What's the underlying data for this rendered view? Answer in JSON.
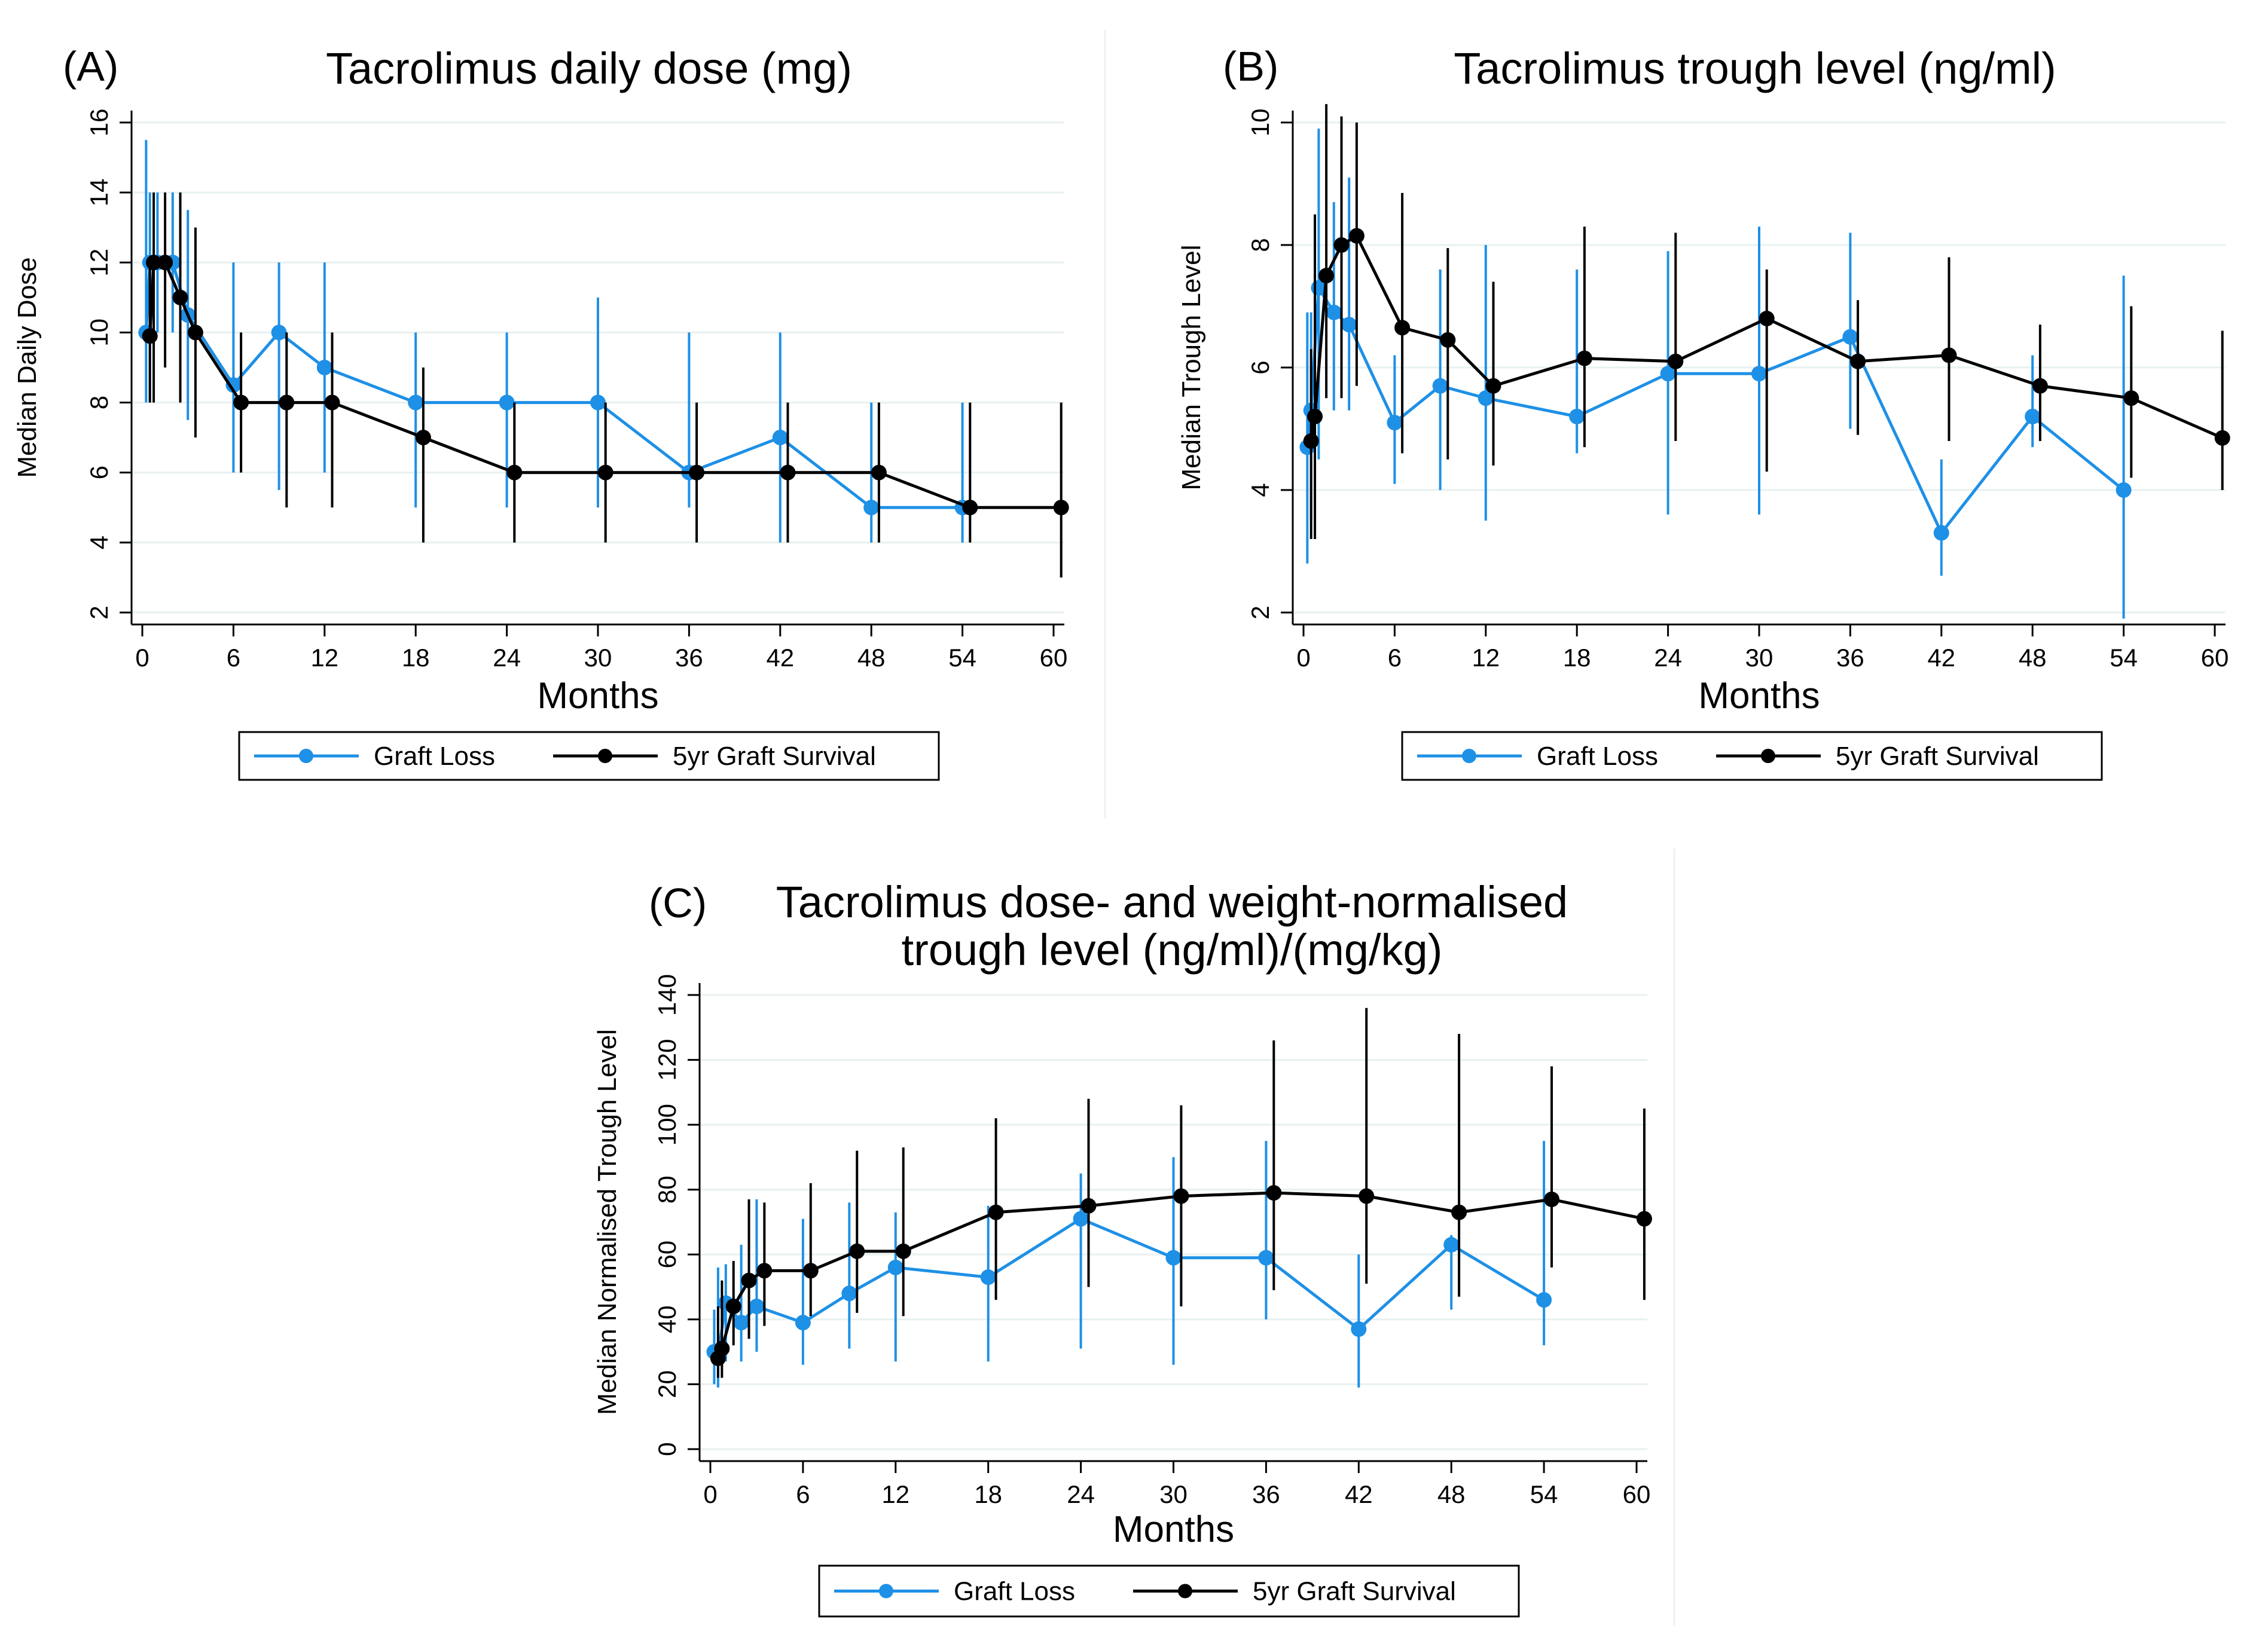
{
  "colors": {
    "graft_loss": "#1e90e6",
    "survival": "#000000"
  },
  "legend": {
    "graft_loss": "Graft Loss",
    "survival": "5yr Graft Survival"
  },
  "chart_data": [
    {
      "type": "line",
      "panel_label": "(A)",
      "title": [
        "Tacrolimus daily dose (mg)"
      ],
      "xlabel": "Months",
      "ylabel": "Median Daily Dose",
      "xlim": [
        0,
        60
      ],
      "ylim": [
        2,
        16
      ],
      "xticks": [
        0,
        6,
        12,
        18,
        24,
        30,
        36,
        42,
        48,
        54,
        60
      ],
      "yticks": [
        2,
        4,
        6,
        8,
        10,
        12,
        14,
        16
      ],
      "grid": true,
      "legend_position": "bottom",
      "series": [
        {
          "name": "Graft Loss",
          "x": [
            0.25,
            0.5,
            1,
            2,
            3,
            6,
            9,
            12,
            18,
            24,
            30,
            36,
            42,
            48,
            54
          ],
          "y": [
            10,
            12,
            12,
            12,
            10.5,
            8.5,
            10,
            9,
            8,
            8,
            8,
            6,
            7,
            5,
            5
          ],
          "lower": [
            8,
            8,
            10,
            10,
            7.5,
            6,
            5.5,
            6,
            5,
            5,
            5,
            5,
            4,
            4,
            4
          ],
          "upper": [
            15.5,
            14,
            14,
            14,
            13.5,
            12,
            12,
            12,
            10,
            10,
            11,
            10,
            10,
            8,
            8
          ]
        },
        {
          "name": "5yr Graft Survival",
          "x": [
            0.5,
            0.75,
            1.5,
            2.5,
            3.5,
            6.5,
            9.5,
            12.5,
            18.5,
            24.5,
            30.5,
            36.5,
            42.5,
            48.5,
            54.5,
            60.5
          ],
          "y": [
            9.9,
            12,
            12,
            11,
            10,
            8,
            8,
            8,
            7,
            6,
            6,
            6,
            6,
            6,
            5,
            5
          ],
          "lower": [
            8,
            8,
            9,
            8,
            7,
            6,
            5,
            5,
            4,
            4,
            4,
            4,
            4,
            4,
            4,
            3
          ],
          "upper": [
            12,
            14,
            14,
            14,
            13,
            10,
            10,
            10,
            9,
            8,
            8,
            8,
            8,
            8,
            8,
            8
          ]
        }
      ]
    },
    {
      "type": "line",
      "panel_label": "(B)",
      "title": [
        "Tacrolimus trough level (ng/ml)"
      ],
      "xlabel": "Months",
      "ylabel": "Median Trough Level",
      "xlim": [
        0,
        60
      ],
      "ylim": [
        2,
        10
      ],
      "xticks": [
        0,
        6,
        12,
        18,
        24,
        30,
        36,
        42,
        48,
        54,
        60
      ],
      "yticks": [
        2,
        4,
        6,
        8,
        10
      ],
      "grid": true,
      "legend_position": "bottom",
      "series": [
        {
          "name": "Graft Loss",
          "x": [
            0.25,
            0.5,
            1,
            2,
            3,
            6,
            9,
            12,
            18,
            24,
            30,
            36,
            42,
            48,
            54
          ],
          "y": [
            4.7,
            5.3,
            7.3,
            6.9,
            6.7,
            5.1,
            5.7,
            5.5,
            5.2,
            5.9,
            5.9,
            6.5,
            3.3,
            5.2,
            4.0
          ],
          "lower": [
            2.8,
            3.5,
            4.5,
            5.3,
            5.3,
            4.1,
            4.0,
            3.5,
            4.6,
            3.6,
            3.6,
            5.0,
            2.6,
            4.7,
            1.9
          ],
          "upper": [
            6.9,
            6.9,
            9.9,
            8.7,
            9.1,
            6.2,
            7.6,
            8.0,
            7.6,
            7.9,
            8.3,
            8.2,
            4.5,
            6.2,
            7.5
          ]
        },
        {
          "name": "5yr Graft Survival",
          "x": [
            0.5,
            0.75,
            1.5,
            2.5,
            3.5,
            6.5,
            9.5,
            12.5,
            18.5,
            24.5,
            30.5,
            36.5,
            42.5,
            48.5,
            54.5,
            60.5
          ],
          "y": [
            4.8,
            5.2,
            7.5,
            8.0,
            8.15,
            6.65,
            6.45,
            5.7,
            6.15,
            6.1,
            6.8,
            6.1,
            6.2,
            5.7,
            5.5,
            4.85
          ],
          "lower": [
            3.2,
            3.2,
            5.5,
            5.5,
            5.7,
            4.6,
            4.5,
            4.4,
            4.7,
            4.8,
            4.3,
            4.9,
            4.8,
            4.8,
            4.2,
            4.0
          ],
          "upper": [
            6.3,
            8.5,
            10.3,
            10.1,
            10.0,
            8.85,
            7.95,
            7.4,
            8.3,
            8.2,
            7.6,
            7.1,
            7.8,
            6.7,
            7.0,
            6.6
          ]
        }
      ]
    },
    {
      "type": "line",
      "panel_label": "(C)",
      "title": [
        "Tacrolimus dose- and weight-normalised",
        "trough level (ng/ml)/(mg/kg)"
      ],
      "xlabel": "Months",
      "ylabel": "Median Normalised Trough Level",
      "xlim": [
        0,
        60
      ],
      "ylim": [
        0,
        140
      ],
      "xticks": [
        0,
        6,
        12,
        18,
        24,
        30,
        36,
        42,
        48,
        54,
        60
      ],
      "yticks": [
        0,
        20,
        40,
        60,
        80,
        100,
        120,
        140
      ],
      "grid": true,
      "legend_position": "bottom",
      "series": [
        {
          "name": "Graft Loss",
          "x": [
            0.25,
            0.5,
            1,
            2,
            3,
            6,
            9,
            12,
            18,
            24,
            30,
            36,
            42,
            48,
            54
          ],
          "y": [
            30,
            29,
            45,
            39,
            44,
            39,
            48,
            56,
            53,
            71,
            59,
            59,
            37,
            63,
            46
          ],
          "lower": [
            20,
            19,
            27,
            27,
            30,
            26,
            31,
            27,
            27,
            31,
            26,
            40,
            19,
            43,
            32
          ],
          "upper": [
            43,
            56,
            57,
            63,
            77,
            71,
            76,
            73,
            75,
            85,
            90,
            95,
            60,
            66,
            95
          ]
        },
        {
          "name": "5yr Graft Survival",
          "x": [
            0.5,
            0.75,
            1.5,
            2.5,
            3.5,
            6.5,
            9.5,
            12.5,
            18.5,
            24.5,
            30.5,
            36.5,
            42.5,
            48.5,
            54.5,
            60.5
          ],
          "y": [
            28,
            31,
            44,
            52,
            55,
            55,
            61,
            61,
            73,
            75,
            78,
            79,
            78,
            73,
            77,
            71
          ],
          "lower": [
            22,
            22,
            32,
            34,
            38,
            41,
            42,
            41,
            46,
            50,
            44,
            49,
            51,
            47,
            56,
            46
          ],
          "upper": [
            44,
            52,
            58,
            77,
            76,
            82,
            92,
            93,
            102,
            108,
            106,
            126,
            136,
            128,
            118,
            105
          ]
        }
      ]
    }
  ]
}
